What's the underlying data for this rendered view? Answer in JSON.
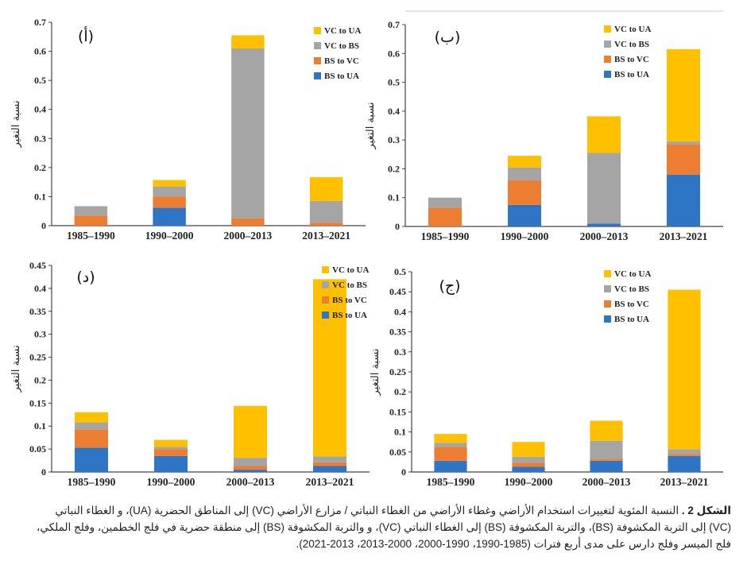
{
  "legend_labels": [
    "VC to UA",
    "VC to BS",
    "BS to VC",
    "BS to UA"
  ],
  "colors": {
    "VC to UA": "#FFC000",
    "VC to BS": "#A5A5A5",
    "BS to VC": "#ED7D31",
    "BS to UA": "#2E75C6"
  },
  "ylabel": "نسبة التغير",
  "caption": {
    "prefix": "الشكل 2 .",
    "text": " النسبة المئوية لتغييرات استخدام الأراضي وغطاء الأراضي من الغطاء النباتي / مزارع الأراضي (VC) إلى المناطق الحضرية (UA)، و الغطاء النباتي (VC) إلى التربة المكشوفة (BS)، والتربة المكشوفة (BS) إلى الغطاء النباتي (VC)، و والتربة المكشوفة (BS) إلى منطقة حضرية في فلج الخطمين، وفلج الملكي، فلج الميسر وفلج دارس على مدى أربع فترات (1985-1990، 1990-2000، 2000-2013، 2013-2021)."
  },
  "chart_data": [
    {
      "type": "bar",
      "stacked": true,
      "panel_label": "(أ)",
      "categories": [
        "1985–1990",
        "1990–2000",
        "2000–2013",
        "2013–2021"
      ],
      "ylim": [
        0,
        0.7
      ],
      "yticks": [
        "0",
        "0.1",
        "0.2",
        "0.3",
        "0.4",
        "0.5",
        "0.6",
        "0.7"
      ],
      "ytick_values": [
        0,
        0.1,
        0.2,
        0.3,
        0.4,
        0.5,
        0.6,
        0.7
      ],
      "series": [
        {
          "name": "BS to UA",
          "values": [
            0.0,
            0.062,
            0.0,
            0.0
          ]
        },
        {
          "name": "BS to VC",
          "values": [
            0.035,
            0.038,
            0.025,
            0.01
          ]
        },
        {
          "name": "VC to BS",
          "values": [
            0.032,
            0.035,
            0.585,
            0.075
          ]
        },
        {
          "name": "VC to UA",
          "values": [
            0.0,
            0.022,
            0.045,
            0.082
          ]
        }
      ]
    },
    {
      "type": "bar",
      "stacked": true,
      "panel_label": "(ب)",
      "categories": [
        "1985–1990",
        "1990–2000",
        "2000–2013",
        "2013–2021"
      ],
      "ylim": [
        0,
        0.7
      ],
      "yticks": [
        "0",
        "0.1",
        "0.2",
        "0.3",
        "0.4",
        "0.5",
        "0.6",
        "0.7"
      ],
      "ytick_values": [
        0,
        0.1,
        0.2,
        0.3,
        0.4,
        0.5,
        0.6,
        0.7
      ],
      "series": [
        {
          "name": "BS to UA",
          "values": [
            0.0,
            0.075,
            0.01,
            0.18
          ]
        },
        {
          "name": "BS to VC",
          "values": [
            0.065,
            0.085,
            0.0,
            0.105
          ]
        },
        {
          "name": "VC to BS",
          "values": [
            0.035,
            0.045,
            0.245,
            0.01
          ]
        },
        {
          "name": "VC to UA",
          "values": [
            0.0,
            0.04,
            0.127,
            0.32
          ]
        }
      ]
    },
    {
      "type": "bar",
      "stacked": true,
      "panel_label": "(د)",
      "categories": [
        "1985–1990",
        "1990–2000",
        "2000–2013",
        "2013–2021"
      ],
      "ylim": [
        0,
        0.45
      ],
      "yticks": [
        "0",
        "0.05",
        "0.1",
        "0.15",
        "0.2",
        "0.25",
        "0.3",
        "0.35",
        "0.4",
        "0.45"
      ],
      "ytick_values": [
        0,
        0.05,
        0.1,
        0.15,
        0.2,
        0.25,
        0.3,
        0.35,
        0.4,
        0.45
      ],
      "series": [
        {
          "name": "BS to UA",
          "values": [
            0.053,
            0.035,
            0.005,
            0.013
          ]
        },
        {
          "name": "BS to VC",
          "values": [
            0.04,
            0.015,
            0.008,
            0.008
          ]
        },
        {
          "name": "VC to BS",
          "values": [
            0.015,
            0.005,
            0.018,
            0.013
          ]
        },
        {
          "name": "VC to UA",
          "values": [
            0.022,
            0.015,
            0.113,
            0.386
          ]
        }
      ]
    },
    {
      "type": "bar",
      "stacked": true,
      "panel_label": "(ج)",
      "categories": [
        "1985–1990",
        "1990–2000",
        "2000–2013",
        "2013–2021"
      ],
      "ylim": [
        0,
        0.5
      ],
      "yticks": [
        "0",
        "0.05",
        "0.1",
        "0.15",
        "0.2",
        "0.25",
        "0.3",
        "0.35",
        "0.4",
        "0.45",
        "0.5"
      ],
      "ytick_values": [
        0,
        0.05,
        0.1,
        0.15,
        0.2,
        0.25,
        0.3,
        0.35,
        0.4,
        0.45,
        0.5
      ],
      "series": [
        {
          "name": "BS to UA",
          "values": [
            0.028,
            0.013,
            0.028,
            0.04
          ]
        },
        {
          "name": "BS to VC",
          "values": [
            0.035,
            0.01,
            0.005,
            0.005
          ]
        },
        {
          "name": "VC to BS",
          "values": [
            0.01,
            0.015,
            0.045,
            0.012
          ]
        },
        {
          "name": "VC to UA",
          "values": [
            0.022,
            0.037,
            0.05,
            0.398
          ]
        }
      ]
    }
  ]
}
